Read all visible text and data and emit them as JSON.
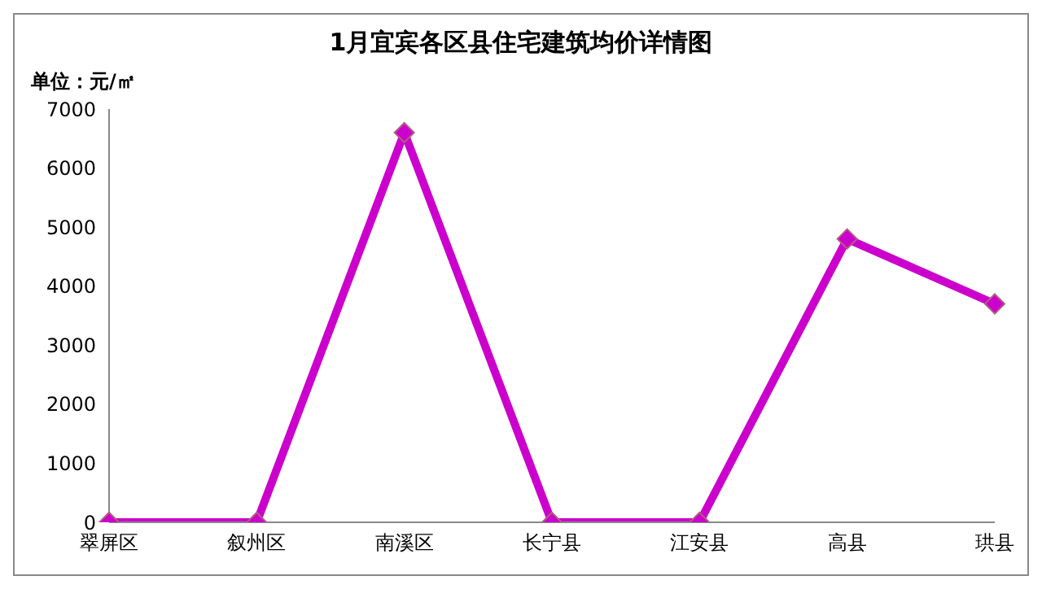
{
  "chart_data": {
    "type": "line",
    "title": "1月宜宾各区县住宅建筑均价详情图",
    "annotations": [
      "单位：元/㎡"
    ],
    "categories": [
      "翠屏区",
      "叙州区",
      "南溪区",
      "长宁县",
      "江安县",
      "高县",
      "珙县"
    ],
    "series": [
      {
        "color": "#cc00cc",
        "values": [
          0,
          0,
          6600,
          0,
          0,
          4800,
          3700
        ]
      }
    ],
    "ylim": [
      0,
      7000
    ],
    "yticks": [
      0,
      1000,
      2000,
      3000,
      4000,
      5000,
      6000,
      7000
    ],
    "grid": false,
    "legend": false,
    "marker": "diamond",
    "line_style": "solid"
  }
}
